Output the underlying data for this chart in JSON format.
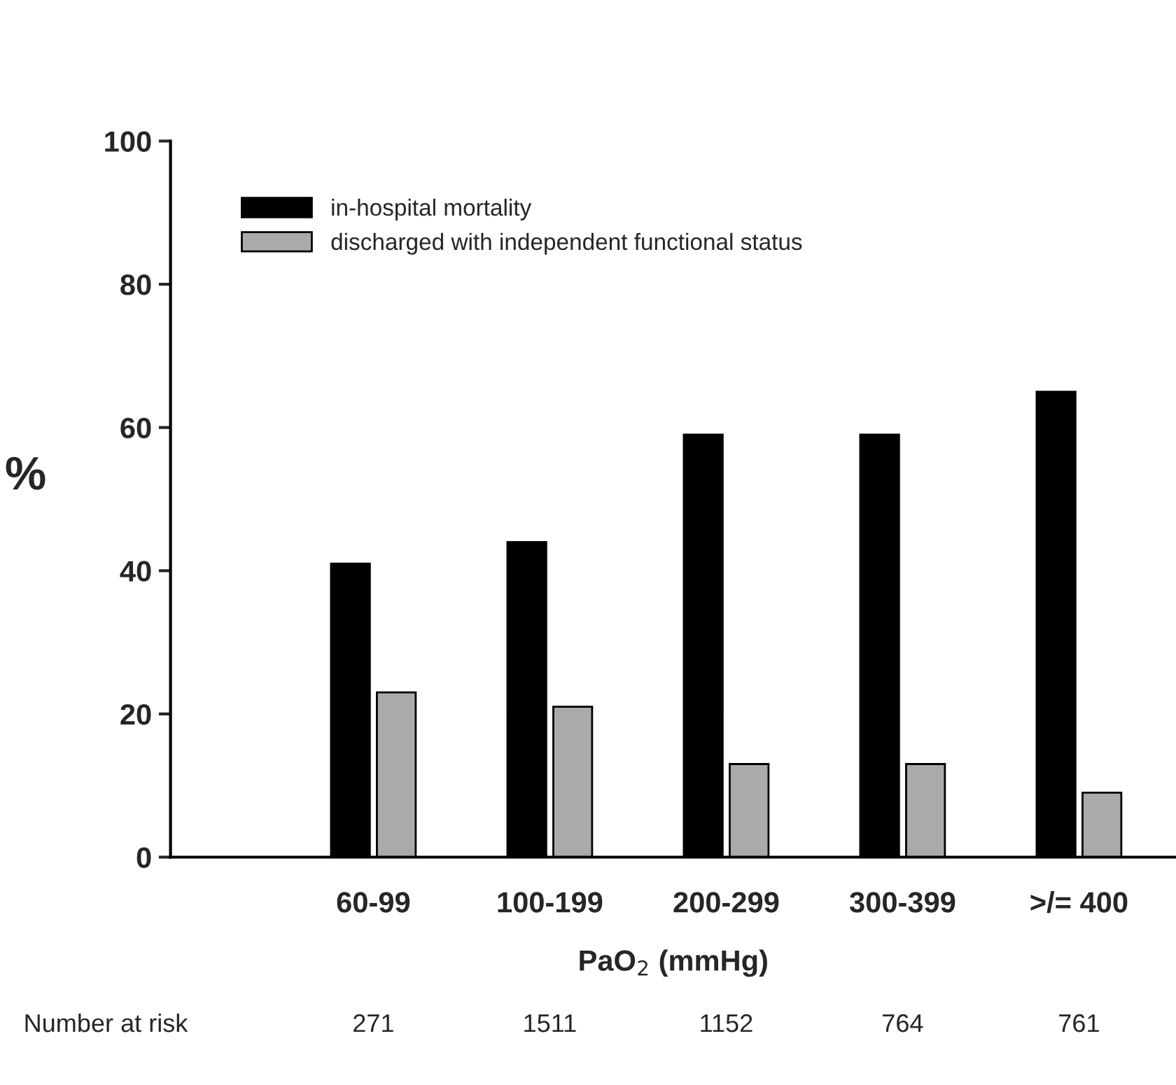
{
  "chart_data": {
    "type": "bar",
    "xlabel": "PaO$_{2}$ (mmHg)",
    "ylabel": "%",
    "categories": [
      "60-99",
      "100-199",
      "200-299",
      "300-399",
      ">/= 400"
    ],
    "series": [
      {
        "name": "in-hospital mortality",
        "color": "#000000",
        "values": [
          41,
          44,
          59,
          59,
          65
        ]
      },
      {
        "name": "discharged with independent functional status",
        "color": "#aaaaaa",
        "values": [
          23,
          21,
          13,
          13,
          9
        ]
      }
    ],
    "ylim": [
      0,
      100
    ],
    "yticks": [
      0,
      20,
      40,
      60,
      80,
      100
    ],
    "grid": false,
    "legend": "top left",
    "annotations": [
      "Number at risk",
      "271",
      "1511",
      "1152",
      "764",
      "761"
    ]
  }
}
